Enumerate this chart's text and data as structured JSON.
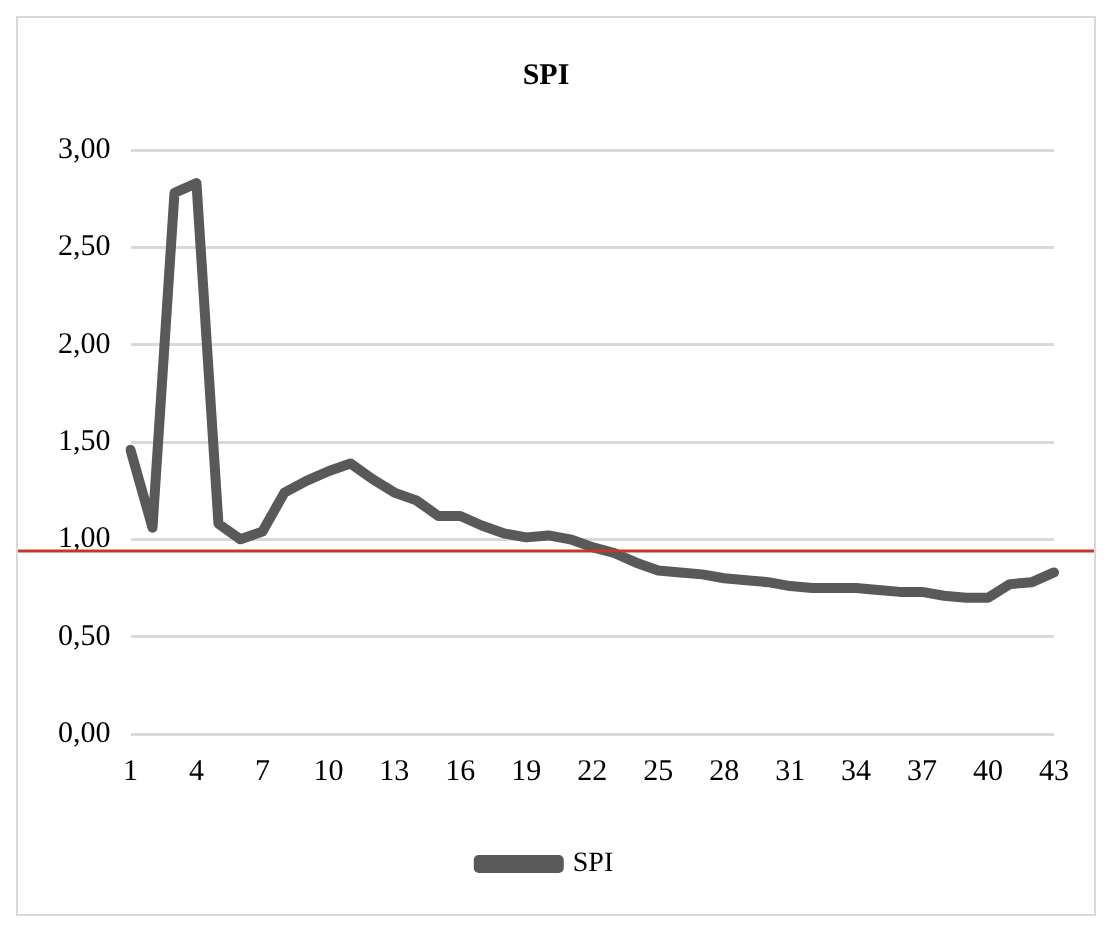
{
  "chart_data": {
    "type": "line",
    "title": "SPI",
    "categories": [
      "1",
      null,
      null,
      "4",
      null,
      null,
      "7",
      null,
      null,
      "10",
      null,
      null,
      "13",
      null,
      null,
      "16",
      null,
      null,
      "19",
      null,
      null,
      "22",
      null,
      null,
      "25",
      null,
      null,
      "28",
      null,
      null,
      "31",
      null,
      null,
      "34",
      null,
      null,
      "37",
      null,
      null,
      "40",
      null,
      null,
      "43"
    ],
    "series": [
      {
        "name": "SPI",
        "color": "#595959",
        "values": [
          1.46,
          1.06,
          2.78,
          2.83,
          1.08,
          1.0,
          1.04,
          1.24,
          1.3,
          1.35,
          1.39,
          1.31,
          1.24,
          1.2,
          1.12,
          1.12,
          1.07,
          1.03,
          1.01,
          1.02,
          1.0,
          0.96,
          0.93,
          0.88,
          0.84,
          0.83,
          0.82,
          0.8,
          0.79,
          0.78,
          0.76,
          0.75,
          0.75,
          0.75,
          0.74,
          0.73,
          0.73,
          0.71,
          0.7,
          0.7,
          0.77,
          0.78,
          0.83
        ]
      }
    ],
    "ylim": [
      0,
      3
    ],
    "yticks": [
      {
        "value": 0,
        "label": "0,00"
      },
      {
        "value": 0.5,
        "label": "0,50"
      },
      {
        "value": 1,
        "label": "1,00"
      },
      {
        "value": 1.5,
        "label": "1,50"
      },
      {
        "value": 2,
        "label": "2,00"
      },
      {
        "value": 2.5,
        "label": "2,50"
      },
      {
        "value": 3,
        "label": "3,00"
      }
    ],
    "ref_lines": [
      {
        "axis": "y",
        "value": 0.94,
        "color": "#c0392b"
      }
    ],
    "grid": "y",
    "legend": "bottom",
    "marker": "none",
    "line_style": "solid"
  }
}
